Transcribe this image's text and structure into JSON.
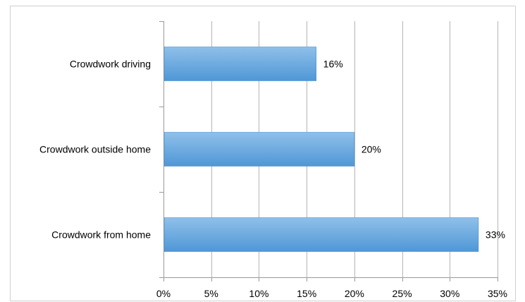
{
  "chart_data": {
    "type": "bar",
    "orientation": "horizontal",
    "title": "",
    "xlabel": "",
    "ylabel": "",
    "categories": [
      "Crowdwork driving",
      "Crowdwork outside home",
      "Crowdwork from home"
    ],
    "values": [
      16,
      20,
      33
    ],
    "data_labels": [
      "16%",
      "20%",
      "33%"
    ],
    "xlim": [
      0,
      35
    ],
    "x_ticks": [
      0,
      5,
      10,
      15,
      20,
      25,
      30,
      35
    ],
    "x_tick_labels": [
      "0%",
      "5%",
      "10%",
      "15%",
      "20%",
      "25%",
      "30%",
      "35%"
    ],
    "grid": "vertical-major",
    "legend": "none",
    "colors": {
      "bar_top": "#8fc0ea",
      "bar_bottom": "#4f97d6",
      "bar_edge": "#4a8fcd",
      "grid": "#b5b5b5",
      "axis": "#9a9a9a",
      "frame": "#d0d0d0"
    }
  }
}
